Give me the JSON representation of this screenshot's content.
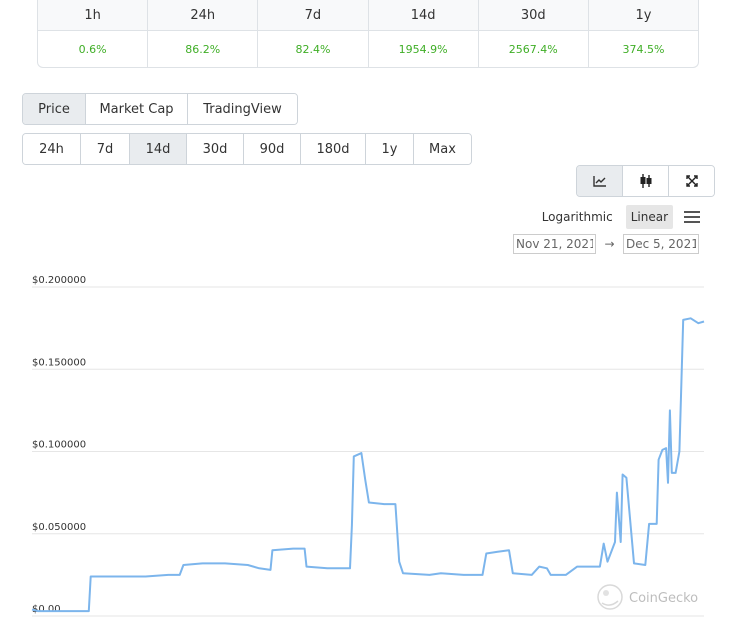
{
  "performance": {
    "headers": [
      "1h",
      "24h",
      "7d",
      "14d",
      "30d",
      "1y"
    ],
    "values": [
      "0.6%",
      "86.2%",
      "82.4%",
      "1954.9%",
      "2567.4%",
      "374.5%"
    ],
    "positive_color": "#3fae26"
  },
  "chart_type_tabs": [
    {
      "label": "Price",
      "active": true
    },
    {
      "label": "Market Cap",
      "active": false
    },
    {
      "label": "TradingView",
      "active": false
    }
  ],
  "range_tabs": [
    {
      "label": "24h",
      "active": false
    },
    {
      "label": "7d",
      "active": false
    },
    {
      "label": "14d",
      "active": true
    },
    {
      "label": "30d",
      "active": false
    },
    {
      "label": "90d",
      "active": false
    },
    {
      "label": "180d",
      "active": false
    },
    {
      "label": "1y",
      "active": false
    },
    {
      "label": "Max",
      "active": false
    }
  ],
  "view_buttons": [
    {
      "icon": "line-chart-icon",
      "active": true
    },
    {
      "icon": "candlestick-icon",
      "active": false
    },
    {
      "icon": "fullscreen-icon",
      "active": false
    }
  ],
  "scale": {
    "logarithmic": "Logarithmic",
    "linear": "Linear",
    "active": "linear",
    "menu_icon": "hamburger-menu-icon"
  },
  "date_range": {
    "from": "Nov 21, 2021",
    "to": "Dec 5, 2021",
    "arrow": "→"
  },
  "watermark": "CoinGecko",
  "chart_data": {
    "type": "line",
    "title": "",
    "xlabel": "",
    "ylabel": "",
    "ylim": [
      0,
      0.2
    ],
    "xlim": [
      "2021-11-21",
      "2021-12-05"
    ],
    "yticks": [
      0,
      0.05,
      0.1,
      0.15,
      0.2
    ],
    "ytick_labels": [
      "$0.00",
      "$0.050000",
      "$0.100000",
      "$0.150000",
      "$0.200000"
    ],
    "line_color": "#7cb5ec",
    "grid": true,
    "series": [
      {
        "values": [
          [
            "2021-11-21T00:00",
            0.004
          ],
          [
            "2021-11-21T03:00",
            0.003
          ],
          [
            "2021-11-21T12:00",
            0.003
          ],
          [
            "2021-11-22T00:00",
            0.003
          ],
          [
            "2021-11-22T06:00",
            0.003
          ],
          [
            "2021-11-22T07:00",
            0.024
          ],
          [
            "2021-11-22T12:00",
            0.024
          ],
          [
            "2021-11-23T00:00",
            0.024
          ],
          [
            "2021-11-23T12:00",
            0.024
          ],
          [
            "2021-11-24T00:00",
            0.025
          ],
          [
            "2021-11-24T06:00",
            0.025
          ],
          [
            "2021-11-24T08:00",
            0.031
          ],
          [
            "2021-11-24T18:00",
            0.032
          ],
          [
            "2021-11-25T06:00",
            0.032
          ],
          [
            "2021-11-25T18:00",
            0.031
          ],
          [
            "2021-11-26T00:00",
            0.029
          ],
          [
            "2021-11-26T06:00",
            0.028
          ],
          [
            "2021-11-26T07:00",
            0.04
          ],
          [
            "2021-11-26T18:00",
            0.041
          ],
          [
            "2021-11-27T00:00",
            0.041
          ],
          [
            "2021-11-27T01:00",
            0.03
          ],
          [
            "2021-11-27T12:00",
            0.029
          ],
          [
            "2021-11-28T00:00",
            0.029
          ],
          [
            "2021-11-28T01:00",
            0.055
          ],
          [
            "2021-11-28T02:00",
            0.097
          ],
          [
            "2021-11-28T06:00",
            0.099
          ],
          [
            "2021-11-28T08:00",
            0.083
          ],
          [
            "2021-11-28T10:00",
            0.069
          ],
          [
            "2021-11-28T18:00",
            0.068
          ],
          [
            "2021-11-29T00:00",
            0.068
          ],
          [
            "2021-11-29T02:00",
            0.033
          ],
          [
            "2021-11-29T04:00",
            0.026
          ],
          [
            "2021-11-29T18:00",
            0.025
          ],
          [
            "2021-11-30T00:00",
            0.026
          ],
          [
            "2021-11-30T12:00",
            0.025
          ],
          [
            "2021-11-30T22:00",
            0.025
          ],
          [
            "2021-12-01T00:00",
            0.038
          ],
          [
            "2021-12-01T06:00",
            0.039
          ],
          [
            "2021-12-01T12:00",
            0.04
          ],
          [
            "2021-12-01T14:00",
            0.026
          ],
          [
            "2021-12-02T00:00",
            0.025
          ],
          [
            "2021-12-02T04:00",
            0.03
          ],
          [
            "2021-12-02T08:00",
            0.029
          ],
          [
            "2021-12-02T10:00",
            0.025
          ],
          [
            "2021-12-02T18:00",
            0.025
          ],
          [
            "2021-12-03T00:00",
            0.03
          ],
          [
            "2021-12-03T12:00",
            0.03
          ],
          [
            "2021-12-03T14:00",
            0.044
          ],
          [
            "2021-12-03T16:00",
            0.033
          ],
          [
            "2021-12-03T20:00",
            0.045
          ],
          [
            "2021-12-03T21:00",
            0.075
          ],
          [
            "2021-12-03T23:00",
            0.045
          ],
          [
            "2021-12-04T00:00",
            0.086
          ],
          [
            "2021-12-04T02:00",
            0.084
          ],
          [
            "2021-12-04T04:00",
            0.058
          ],
          [
            "2021-12-04T06:00",
            0.032
          ],
          [
            "2021-12-04T12:00",
            0.031
          ],
          [
            "2021-12-04T14:00",
            0.056
          ],
          [
            "2021-12-04T18:00",
            0.056
          ],
          [
            "2021-12-04T19:00",
            0.095
          ],
          [
            "2021-12-04T21:00",
            0.101
          ],
          [
            "2021-12-04T23:00",
            0.102
          ],
          [
            "2021-12-05T00:00",
            0.081
          ],
          [
            "2021-12-05T01:00",
            0.125
          ],
          [
            "2021-12-05T02:00",
            0.087
          ],
          [
            "2021-12-05T04:00",
            0.087
          ],
          [
            "2021-12-05T06:00",
            0.1
          ],
          [
            "2021-12-05T08:00",
            0.18
          ],
          [
            "2021-12-05T12:00",
            0.181
          ],
          [
            "2021-12-05T16:00",
            0.178
          ],
          [
            "2021-12-05T19:00",
            0.179
          ]
        ]
      }
    ]
  }
}
